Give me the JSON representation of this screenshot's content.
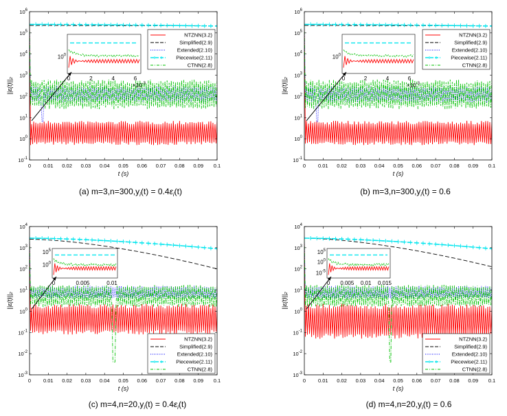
{
  "chart_data": [
    {
      "type": "line",
      "panel": "a",
      "caption": {
        "prefix": "(a)",
        "text": "m=3,n=300,y",
        "rest": "(t) = 0.4ε",
        "tail": "(t)"
      },
      "xlabel": "t (s)",
      "ylabel": "||ε(t)||₂",
      "xlim": [
        0,
        0.1
      ],
      "ylim_exp": [
        -1,
        6
      ],
      "x_ticks": [
        "0",
        "0.01",
        "0.02",
        "0.03",
        "0.04",
        "0.05",
        "0.06",
        "0.07",
        "0.08",
        "0.09",
        "0.1"
      ],
      "y_ticks": [
        "10-1",
        "100",
        "101",
        "102",
        "103",
        "104",
        "105",
        "106"
      ],
      "legend": [
        "NTZNN(3.2)",
        "Simplified(2.9)",
        "Extended(2.10)",
        "Piecewise(2.11)",
        "CTNN(2.8)"
      ],
      "legend_pos": "top-right",
      "series": [
        {
          "name": "NTZNN(3.2)",
          "color": "#ff0000",
          "band_log10": [
            -0.3,
            0.85
          ],
          "note": "oscillating band"
        },
        {
          "name": "Simplified(2.9)",
          "color": "#000000",
          "start_log10": 5.35,
          "end_log10": 5.33
        },
        {
          "name": "Extended(2.10)",
          "color": "#0000ff",
          "band_log10": [
            1.7,
            2.5
          ],
          "drop_at": 0.007
        },
        {
          "name": "Piecewise(2.11)",
          "color": "#00e5ee",
          "start_log10": 5.4,
          "end_log10": 5.32
        },
        {
          "name": "CTNN(2.8)",
          "color": "#00c000",
          "band_log10": [
            1.4,
            2.8
          ]
        }
      ],
      "inset": {
        "x_ticks": [
          "0",
          "2",
          "4",
          "6"
        ],
        "x_mult": "×10-3",
        "y_label": "100"
      }
    },
    {
      "type": "line",
      "panel": "b",
      "caption": {
        "prefix": "(b)",
        "text": "m=3,n=300,y",
        "rest": "(t) = 0.6",
        "tail": ""
      },
      "xlabel": "t (s)",
      "ylabel": "||ε(t)||₂",
      "xlim": [
        0,
        0.1
      ],
      "ylim_exp": [
        -1,
        6
      ],
      "x_ticks": [
        "0",
        "0.01",
        "0.02",
        "0.03",
        "0.04",
        "0.05",
        "0.06",
        "0.07",
        "0.08",
        "0.09",
        "0.1"
      ],
      "y_ticks": [
        "10-1",
        "100",
        "101",
        "102",
        "103",
        "104",
        "105",
        "106"
      ],
      "legend": [
        "NTZNN(3.2)",
        "Simplified(2.9)",
        "Extended(2.10)",
        "Piecewise(2.11)",
        "CTNN(2.8)"
      ],
      "legend_pos": "top-right",
      "series": [
        {
          "name": "NTZNN(3.2)",
          "color": "#ff0000",
          "band_log10": [
            -0.3,
            0.85
          ]
        },
        {
          "name": "Simplified(2.9)",
          "color": "#000000",
          "start_log10": 5.35,
          "end_log10": 5.33
        },
        {
          "name": "Extended(2.10)",
          "color": "#0000ff",
          "band_log10": [
            1.7,
            2.5
          ],
          "drop_at": 0.007
        },
        {
          "name": "Piecewise(2.11)",
          "color": "#00e5ee",
          "start_log10": 5.4,
          "end_log10": 5.32
        },
        {
          "name": "CTNN(2.8)",
          "color": "#00c000",
          "band_log10": [
            1.4,
            2.8
          ]
        }
      ],
      "inset": {
        "x_ticks": [
          "0",
          "2",
          "4",
          "6"
        ],
        "x_mult": "×10-3",
        "y_label": "100"
      }
    },
    {
      "type": "line",
      "panel": "c",
      "caption": {
        "prefix": "(c)",
        "text": "m=4,n=20,y",
        "rest": "(t) = 0.4ε",
        "tail": "(t)"
      },
      "xlabel": "t (s)",
      "ylabel": "||ε(t)||₂",
      "xlim": [
        0,
        0.1
      ],
      "ylim_exp": [
        -3,
        4
      ],
      "x_ticks": [
        "0",
        "0.01",
        "0.02",
        "0.03",
        "0.04",
        "0.05",
        "0.06",
        "0.07",
        "0.08",
        "0.09",
        "0.1"
      ],
      "y_ticks": [
        "10-3",
        "10-2",
        "10-1",
        "100",
        "101",
        "102",
        "103",
        "104"
      ],
      "legend": [
        "NTZNN(3.2)",
        "Simplified(2.9)",
        "Extended(2.10)",
        "Piecewise(2.11)",
        "CTNN(2.8)"
      ],
      "legend_pos": "bottom-right",
      "series": [
        {
          "name": "NTZNN(3.2)",
          "color": "#ff0000",
          "band_log10": [
            -1.1,
            0.35
          ]
        },
        {
          "name": "Simplified(2.9)",
          "color": "#000000",
          "start_log10": 3.4,
          "end_log10": 2.0
        },
        {
          "name": "Extended(2.10)",
          "color": "#0000ff",
          "band_log10": [
            0.6,
            1.2
          ]
        },
        {
          "name": "Piecewise(2.11)",
          "color": "#00e5ee",
          "start_log10": 3.45,
          "end_log10": 2.95
        },
        {
          "name": "CTNN(2.8)",
          "color": "#00c000",
          "band_log10": [
            0.2,
            1.25
          ],
          "spike_at": 0.045,
          "spike_log10": -2.4
        }
      ],
      "inset": {
        "x_ticks": [
          "0",
          "0.005",
          "0.01"
        ],
        "x_mult": "",
        "y_label_top": "105",
        "y_label": "100"
      }
    },
    {
      "type": "line",
      "panel": "d",
      "caption": {
        "prefix": "(d)",
        "text": "m=4,n=20,y",
        "rest": "(t) = 0.6",
        "tail": ""
      },
      "xlabel": "t (s)",
      "ylabel": "||ε(t)||₂",
      "xlim": [
        0,
        0.1
      ],
      "ylim_exp": [
        -3,
        4
      ],
      "x_ticks": [
        "0",
        "0.01",
        "0.02",
        "0.03",
        "0.04",
        "0.05",
        "0.06",
        "0.07",
        "0.08",
        "0.09",
        "0.1"
      ],
      "y_ticks": [
        "10-3",
        "10-2",
        "10-1",
        "100",
        "101",
        "102",
        "103",
        "104"
      ],
      "legend": [
        "NTZNN(3.2)",
        "Simplified(2.9)",
        "Extended(2.10)",
        "Piecewise(2.11)",
        "CTNN(2.8)"
      ],
      "legend_pos": "bottom-right",
      "series": [
        {
          "name": "NTZNN(3.2)",
          "color": "#ff0000",
          "band_log10": [
            -1.3,
            0.35
          ]
        },
        {
          "name": "Simplified(2.9)",
          "color": "#000000",
          "start_log10": 3.45,
          "end_log10": 2.1
        },
        {
          "name": "Extended(2.10)",
          "color": "#0000ff",
          "band_log10": [
            0.6,
            1.2
          ]
        },
        {
          "name": "Piecewise(2.11)",
          "color": "#00e5ee",
          "start_log10": 3.45,
          "end_log10": 2.95
        },
        {
          "name": "CTNN(2.8)",
          "color": "#00c000",
          "band_log10": [
            0.2,
            1.25
          ],
          "spike_at": 0.046,
          "spike_log10": -2.4
        }
      ],
      "inset": {
        "x_ticks": [
          "0",
          "0.005",
          "0.01",
          "0.015"
        ],
        "x_mult": "",
        "y_label_top": "105",
        "y_label": "10-5",
        "y_label_mid": "100"
      }
    }
  ]
}
